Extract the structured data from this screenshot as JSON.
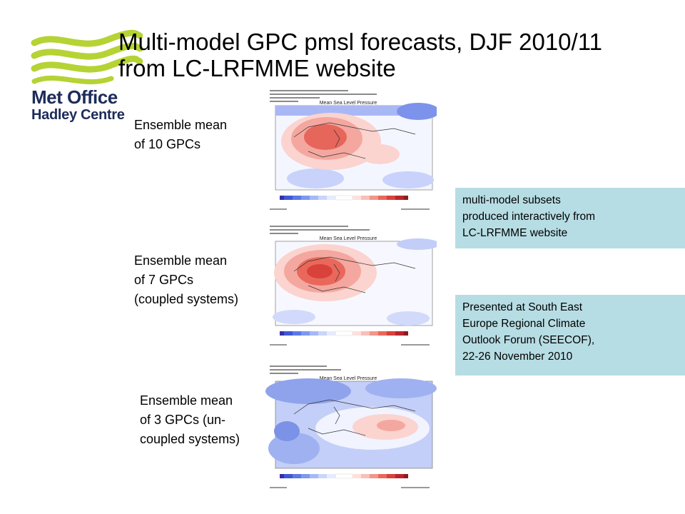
{
  "title": {
    "line1": "Multi-model GPC pmsl forecasts, DJF 2010/11",
    "line2": "from LC-LRFMME website"
  },
  "logo": {
    "line1": "Met Office",
    "line2": "Hadley Centre",
    "colors": {
      "wave": "#b5d334",
      "text": "#1d2b5a"
    }
  },
  "panels": [
    {
      "label_lines": [
        "Ensemble mean",
        "of 10 GPCs"
      ],
      "map_title": "Mean Sea Level Pressure"
    },
    {
      "label_lines": [
        "Ensemble mean",
        "of 7 GPCs",
        "(coupled systems)"
      ],
      "map_title": "Mean Sea Level Pressure"
    },
    {
      "label_lines": [
        "Ensemble mean",
        "of 3 GPCs (un-",
        "coupled systems)"
      ],
      "map_title": "Mean Sea Level Pressure"
    }
  ],
  "notes": {
    "subsets": [
      "multi-model subsets",
      "produced interactively from",
      "LC-LRFMME website"
    ],
    "presented": [
      "Presented at South East",
      "Europe Regional Climate",
      "Outlook Forum (SEECOF),",
      "22-26 November 2010"
    ]
  },
  "colors": {
    "note_bg": "#b7dde4",
    "anomaly_pos": "#e0413a",
    "anomaly_neg": "#4a6fe0"
  }
}
